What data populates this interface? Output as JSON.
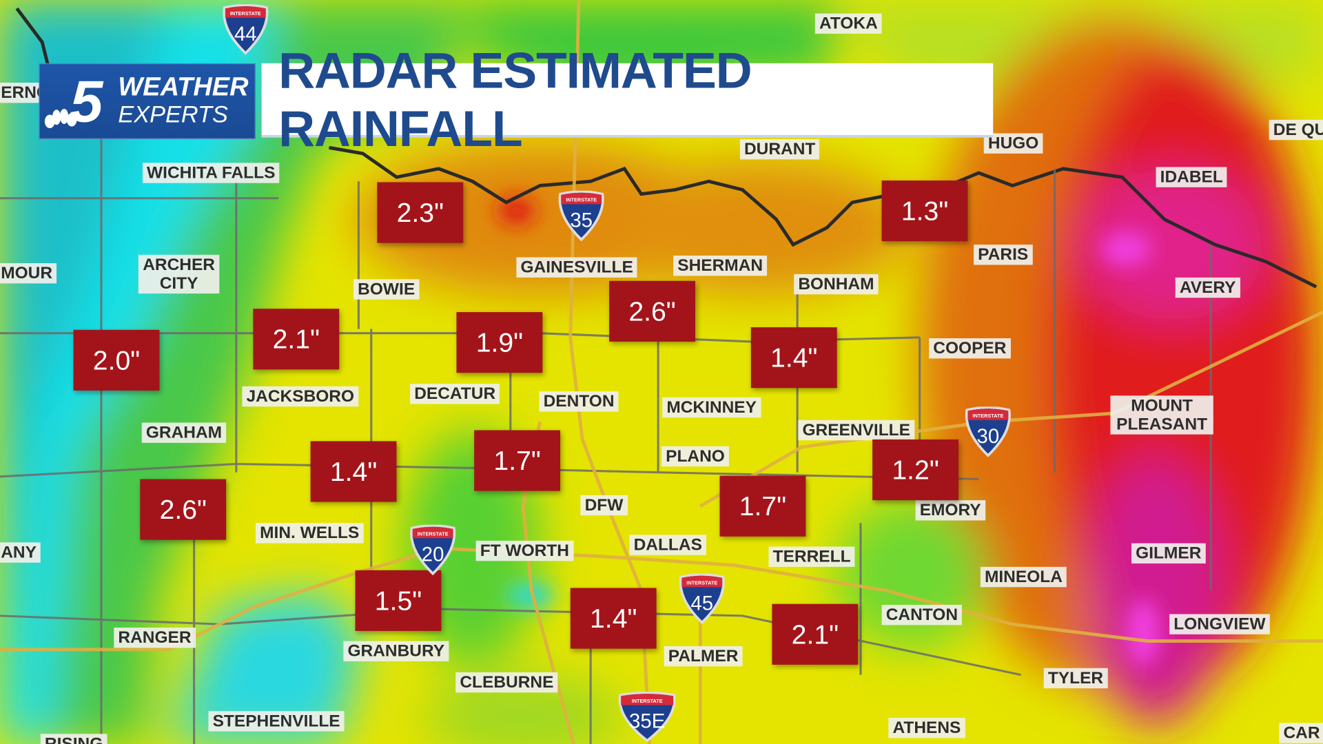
{
  "title": "RADAR ESTIMATED RAINFALL",
  "logo": {
    "number": "5",
    "line1": "WEATHER",
    "line2": "EXPERTS"
  },
  "colors": {
    "rain_box": "#a3141a",
    "title_text": "#1f4b8e",
    "logo_bg": "#1e56a8"
  },
  "cities": [
    "ATOKA",
    "ERNON",
    "WICHITA FALLS",
    "DURANT",
    "HUGO",
    "DE QU",
    "IDABEL",
    "MOUR",
    "ARCHER CITY",
    "BOWIE",
    "GAINESVILLE",
    "SHERMAN",
    "BONHAM",
    "PARIS",
    "AVERY",
    "COOPER",
    "JACKSBORO",
    "DECATUR",
    "DENTON",
    "MCKINNEY",
    "GRAHAM",
    "GREENVILLE",
    "MOUNT PLEASANT",
    "PLANO",
    "DFW",
    "EMORY",
    "ANY",
    "MIN. WELLS",
    "FT WORTH",
    "DALLAS",
    "TERRELL",
    "GILMER",
    "MINEOLA",
    "CANTON",
    "LONGVIEW",
    "RANGER",
    "GRANBURY",
    "PALMER",
    "TYLER",
    "CLEBURNE",
    "STEPHENVILLE",
    "ATHENS",
    "RISING",
    "CAR"
  ],
  "rainfall": [
    "2.3\"",
    "1.3\"",
    "2.6\"",
    "2.1\"",
    "1.9\"",
    "2.0\"",
    "1.4\"",
    "1.4\"",
    "1.7\"",
    "1.2\"",
    "2.6\"",
    "1.7\"",
    "1.5\"",
    "1.4\"",
    "2.1\""
  ],
  "interstates": [
    {
      "label": "INTERSTATE",
      "number": "44"
    },
    {
      "label": "INTERSTATE",
      "number": "35"
    },
    {
      "label": "INTERSTATE",
      "number": "30"
    },
    {
      "label": "INTERSTATE",
      "number": "20"
    },
    {
      "label": "INTERSTATE",
      "number": "45"
    },
    {
      "label": "INTERSTATE",
      "number": "35E"
    }
  ]
}
